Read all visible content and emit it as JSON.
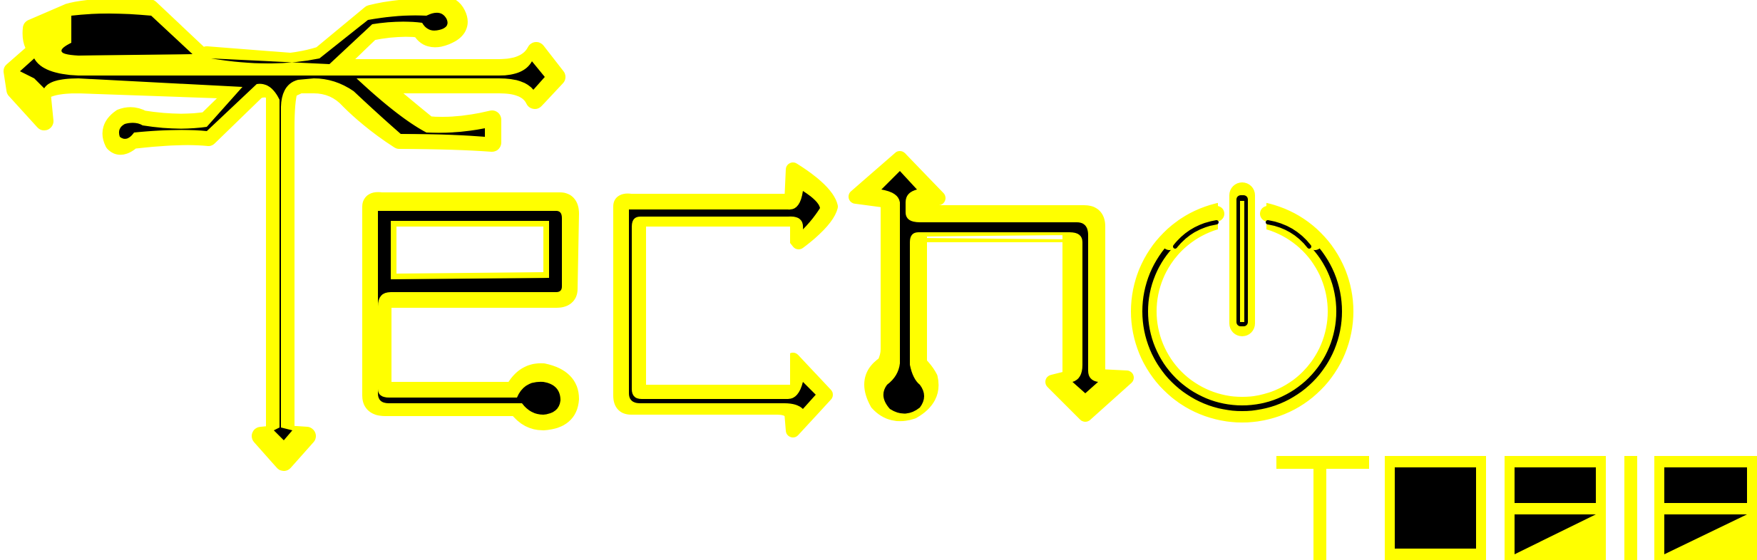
{
  "logo": {
    "wordmark": "Techno",
    "tagline": "TOPIA",
    "colors": {
      "outline": "#ffff00",
      "fill": "#000000",
      "background": "#ffffff"
    }
  },
  "icons": [
    "circuit-trace-t-glyph",
    "power-icon"
  ]
}
